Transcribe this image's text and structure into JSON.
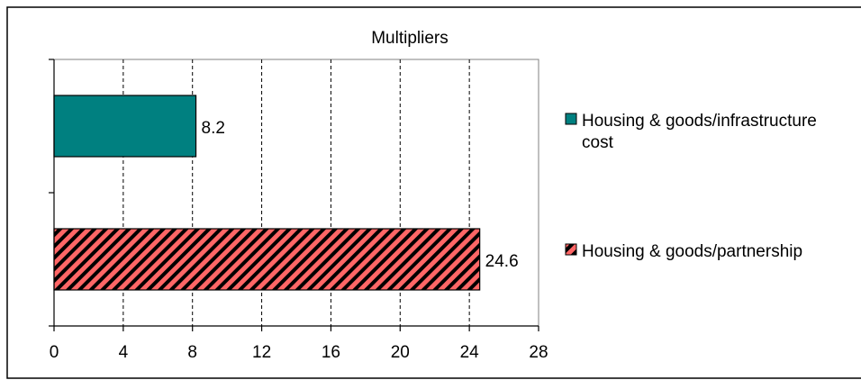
{
  "chart_data": {
    "type": "bar",
    "orientation": "horizontal",
    "title": "Multipliers",
    "xlabel": "",
    "ylabel": "",
    "xlim": [
      0,
      28
    ],
    "xticks": [
      0,
      4,
      8,
      12,
      16,
      20,
      24,
      28
    ],
    "grid": "vertical dashed",
    "legend_position": "right",
    "series": [
      {
        "name": "Housing & goods/infrastructure cost",
        "value": 8.2,
        "value_label": "8.2",
        "color": "#008080",
        "fill": "solid"
      },
      {
        "name": "Housing & goods/partnership",
        "value": 24.6,
        "value_label": "24.6",
        "color": "#ff6666",
        "fill": "diagonal-hatch",
        "hatch_color": "#000000"
      }
    ]
  }
}
